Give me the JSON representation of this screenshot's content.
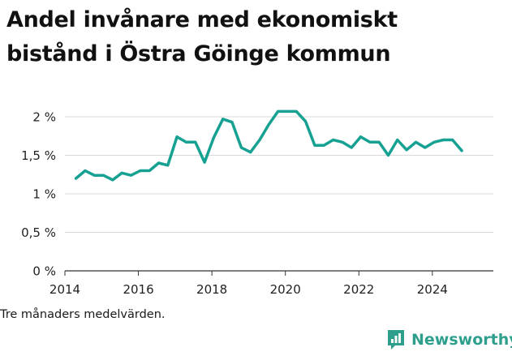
{
  "title": "Andel invånare med ekonomiskt bistånd i Östra Göinge kommun",
  "note": "Tre månaders medelvärden.",
  "brand": {
    "name": "Newsworthy",
    "icon": "newsworthy-logo-icon"
  },
  "colors": {
    "line": "#17a192",
    "grid": "#d9d9d9",
    "axis": "#333333",
    "brand": "#2f9f8d"
  },
  "chart_data": {
    "type": "line",
    "title": "Andel invånare med ekonomiskt bistånd i Östra Göinge kommun",
    "xlabel": "",
    "ylabel": "",
    "xlim": [
      2014,
      2025.5
    ],
    "ylim": [
      0,
      2
    ],
    "x_ticks": [
      2014,
      2016,
      2018,
      2020,
      2022,
      2024
    ],
    "y_ticks": [
      0,
      0.5,
      1,
      1.5,
      2
    ],
    "y_tick_labels": [
      "0 %",
      "0,5 %",
      "1 %",
      "1,5 %",
      "2 %"
    ],
    "grid": "horizontal",
    "x": [
      2014.3,
      2014.55,
      2014.8,
      2015.05,
      2015.3,
      2015.55,
      2015.8,
      2016.05,
      2016.3,
      2016.55,
      2016.8,
      2017.05,
      2017.3,
      2017.55,
      2017.8,
      2018.05,
      2018.3,
      2018.55,
      2018.8,
      2019.05,
      2019.3,
      2019.55,
      2019.8,
      2020.05,
      2020.3,
      2020.55,
      2020.8,
      2021.05,
      2021.3,
      2021.55,
      2021.8,
      2022.05,
      2022.3,
      2022.55,
      2022.8,
      2023.05,
      2023.3,
      2023.55,
      2023.8,
      2024.05,
      2024.3,
      2024.55,
      2024.8
    ],
    "series": [
      {
        "values": [
          1.2,
          1.3,
          1.24,
          1.24,
          1.18,
          1.27,
          1.24,
          1.3,
          1.3,
          1.4,
          1.37,
          1.74,
          1.67,
          1.67,
          1.41,
          1.73,
          1.97,
          1.93,
          1.6,
          1.54,
          1.7,
          1.9,
          2.07,
          2.07,
          2.07,
          1.94,
          1.63,
          1.63,
          1.7,
          1.67,
          1.6,
          1.74,
          1.67,
          1.67,
          1.5,
          1.7,
          1.57,
          1.67,
          1.6,
          1.67,
          1.7,
          1.7,
          1.56
        ]
      }
    ]
  }
}
